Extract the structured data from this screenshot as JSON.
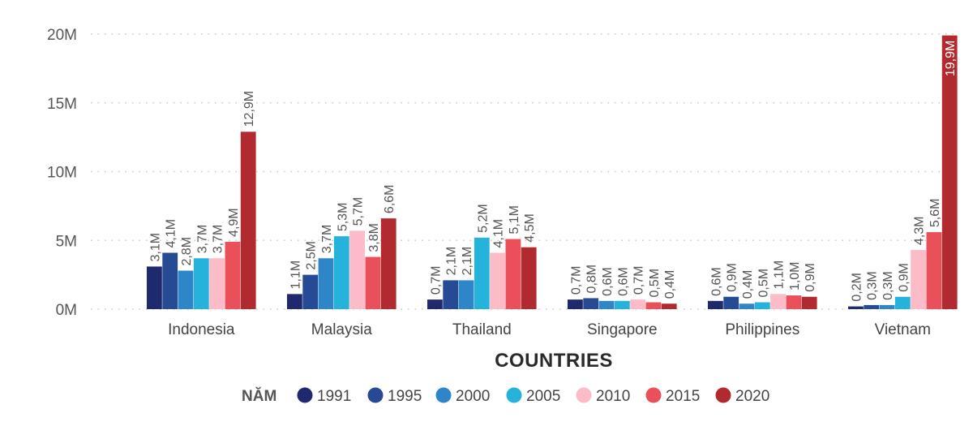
{
  "chart_data": {
    "type": "bar",
    "title": "",
    "xlabel": "COUNTRIES",
    "ylabel": "",
    "ylim": [
      0,
      20
    ],
    "y_unit": "M",
    "y_ticks": [
      "0M",
      "5M",
      "10M",
      "15M",
      "20M"
    ],
    "y_tick_values": [
      0,
      5,
      10,
      15,
      20
    ],
    "grid": true,
    "legend_title": "NĂM",
    "legend_position": "bottom",
    "categories": [
      "Indonesia",
      "Malaysia",
      "Thailand",
      "Singapore",
      "Philippines",
      "Vietnam"
    ],
    "series": [
      {
        "name": "1991",
        "color": "#1f2a6e",
        "values": [
          3.1,
          1.1,
          0.7,
          0.7,
          0.6,
          0.2
        ],
        "labels": [
          "3,1M",
          "1,1M",
          "0,7M",
          "0,7M",
          "0,6M",
          "0,2M"
        ]
      },
      {
        "name": "1995",
        "color": "#274a94",
        "values": [
          4.1,
          2.5,
          2.1,
          0.8,
          0.9,
          0.3
        ],
        "labels": [
          "4,1M",
          "2,5M",
          "2,1M",
          "0,8M",
          "0,9M",
          "0,3M"
        ]
      },
      {
        "name": "2000",
        "color": "#2e86c9",
        "values": [
          2.8,
          3.7,
          2.1,
          0.6,
          0.4,
          0.3
        ],
        "labels": [
          "2,8M",
          "3,7M",
          "2,1M",
          "0,6M",
          "0,4M",
          "0,3M"
        ]
      },
      {
        "name": "2005",
        "color": "#25b3dc",
        "values": [
          3.7,
          5.3,
          5.2,
          0.6,
          0.5,
          0.9
        ],
        "labels": [
          "3,7M",
          "5,3M",
          "5,2M",
          "0,6M",
          "0,5M",
          "0,9M"
        ]
      },
      {
        "name": "2010",
        "color": "#fbbcc8",
        "values": [
          3.7,
          5.7,
          4.1,
          0.7,
          1.1,
          4.3
        ],
        "labels": [
          "3,7M",
          "5,7M",
          "4,1M",
          "0,7M",
          "1,1M",
          "4,3M"
        ]
      },
      {
        "name": "2015",
        "color": "#e9505a",
        "values": [
          4.9,
          3.8,
          5.1,
          0.5,
          1.0,
          5.6
        ],
        "labels": [
          "4,9M",
          "3,8M",
          "5,1M",
          "0,5M",
          "1,0M",
          "5,6M"
        ]
      },
      {
        "name": "2020",
        "color": "#b02a2f",
        "values": [
          12.9,
          6.6,
          4.5,
          0.4,
          0.9,
          19.9
        ],
        "labels": [
          "12,9M",
          "6,6M",
          "4,5M",
          "0,4M",
          "0,9M",
          "19,9M"
        ]
      }
    ]
  }
}
